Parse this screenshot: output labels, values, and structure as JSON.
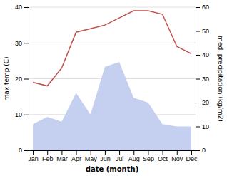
{
  "chart_data": {
    "type": "line",
    "xlabel": "date (month)",
    "ylabel": "max temp (C)",
    "y2label": "med. precipitation (kg/m2)",
    "categories": [
      "Jan",
      "Feb",
      "Mar",
      "Apr",
      "May",
      "Jun",
      "Jul",
      "Aug",
      "Sep",
      "Oct",
      "Nov",
      "Dec"
    ],
    "series": [
      {
        "type": "area",
        "color": "#c5d0f0",
        "axis": "y2",
        "values": [
          11,
          14,
          12,
          24,
          15,
          35,
          37,
          22,
          20,
          11,
          10,
          10
        ]
      },
      {
        "type": "line",
        "color": "#c0504d",
        "values": [
          19,
          18,
          23,
          33,
          34,
          35,
          37,
          39,
          39,
          38,
          29,
          27
        ]
      }
    ],
    "ylim": [
      0,
      40
    ],
    "yticks": [
      0,
      10,
      20,
      30,
      40
    ],
    "y2lim": [
      0,
      60
    ],
    "y2ticks": [
      0,
      10,
      20,
      30,
      40,
      50,
      60
    ],
    "grid": true
  }
}
